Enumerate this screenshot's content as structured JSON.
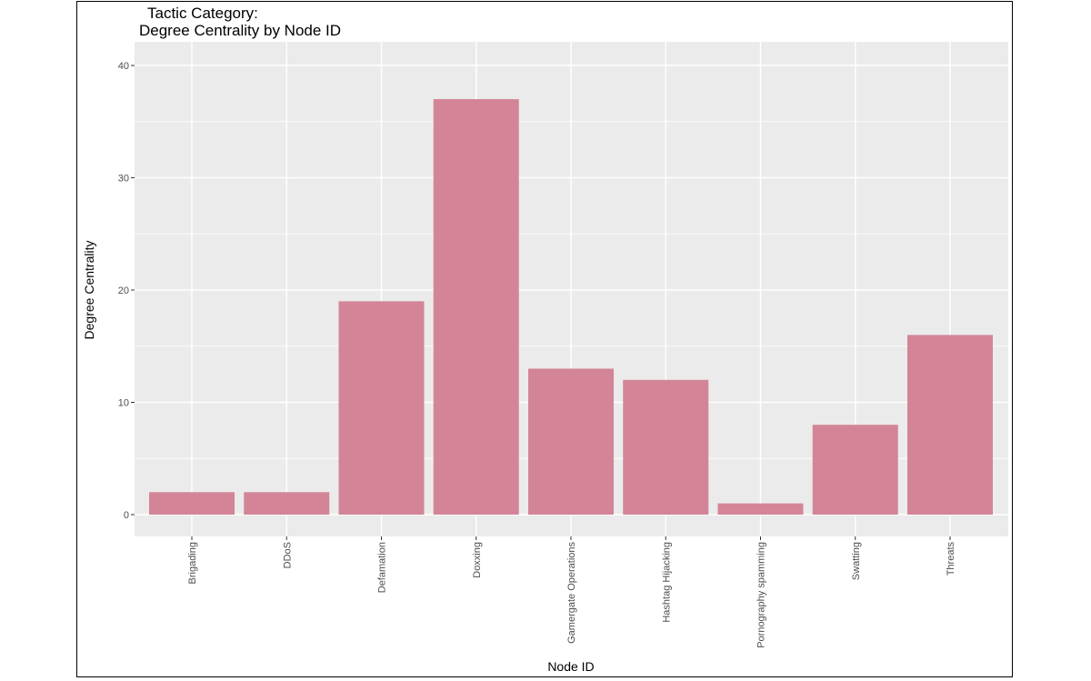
{
  "chart_data": {
    "type": "bar",
    "title_lines": [
      "Tactic Category:",
      "Degree Centrality by Node ID"
    ],
    "xlabel": "Node  ID",
    "ylabel": "Degree  Centrality",
    "categories": [
      "Brigading",
      "DDoS",
      "Defamation",
      "Doxxing",
      "Gamergate Operations",
      "Hashtag Hijacking",
      "Pornography spamming",
      "Swatting",
      "Threats"
    ],
    "values": [
      2,
      2,
      19,
      37,
      13,
      12,
      1,
      8,
      16
    ],
    "ylim": [
      0,
      40
    ],
    "yticks": [
      0,
      10,
      20,
      30,
      40
    ],
    "grid": true,
    "bar_color": "#d38597",
    "panel_background": "#ebebeb",
    "grid_color": "#ffffff"
  }
}
